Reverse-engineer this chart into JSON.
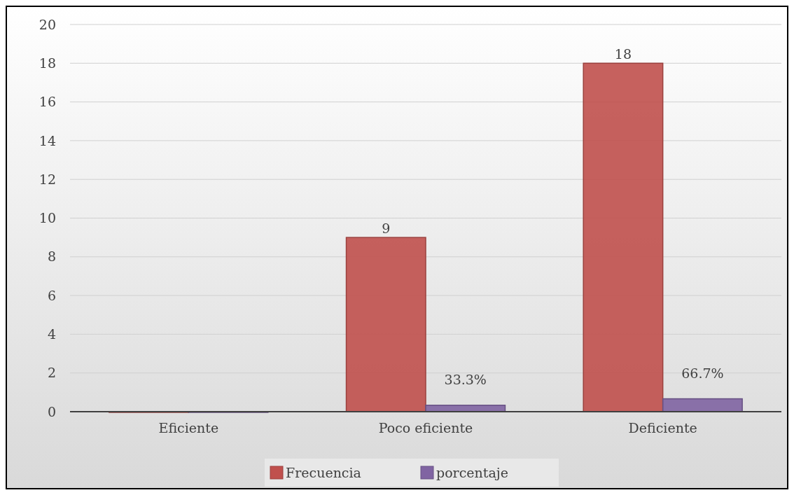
{
  "chart_data": {
    "type": "bar",
    "categories": [
      "Eficiente",
      "Poco eficiente",
      "Deficiente"
    ],
    "series": [
      {
        "name": "Frecuencia",
        "color": "#c0504d",
        "values": [
          0,
          9,
          18
        ],
        "value_labels": [
          null,
          "9",
          "18"
        ]
      },
      {
        "name": "porcentaje",
        "color": "#8064a2",
        "values": [
          0,
          0.333,
          0.667
        ],
        "value_labels": [
          null,
          "33.3%",
          "66.7%"
        ]
      }
    ],
    "ylim": [
      0,
      20
    ],
    "yticks": [
      0,
      2,
      4,
      6,
      8,
      10,
      12,
      14,
      16,
      18,
      20
    ],
    "grid": "y",
    "legend": "bottom"
  }
}
